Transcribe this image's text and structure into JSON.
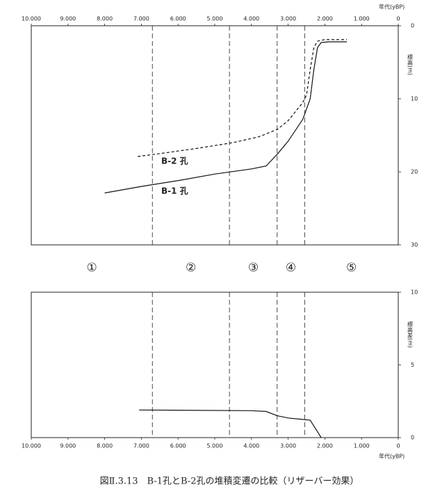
{
  "chart_data": [
    {
      "type": "line",
      "xlabel": "年代(yBP)",
      "ylabel": "標高(m)",
      "xlim": [
        10000,
        0
      ],
      "ylim": [
        30,
        0
      ],
      "yreversed": true,
      "xticks": [
        {
          "value": 10000,
          "label": "10.000"
        },
        {
          "value": 9000,
          "label": "9.000"
        },
        {
          "value": 8000,
          "label": "8.000"
        },
        {
          "value": 7000,
          "label": "7.000"
        },
        {
          "value": 6000,
          "label": "6.000"
        },
        {
          "value": 5000,
          "label": "5.000"
        },
        {
          "value": 4000,
          "label": "4.000"
        },
        {
          "value": 3000,
          "label": "3.000"
        },
        {
          "value": 2000,
          "label": "2.000"
        },
        {
          "value": 1000,
          "label": "1.000"
        },
        0
      ],
      "yticks": [
        0,
        10,
        20,
        30
      ],
      "vlines": [
        6700,
        4600,
        3300,
        2550
      ],
      "series": [
        {
          "name": "B-1 孔",
          "color": "#111",
          "dashed": false,
          "x": [
            8000,
            7000,
            6000,
            5000,
            4000,
            3600,
            3300,
            3000,
            2600,
            2400,
            2300,
            2200,
            2100,
            1900,
            1400
          ],
          "values": [
            22.9,
            22.0,
            21.2,
            20.3,
            19.6,
            19.2,
            17.6,
            15.8,
            12.8,
            10.0,
            6.0,
            3.0,
            2.3,
            2.2,
            2.2
          ]
        },
        {
          "name": "B-2 孔",
          "color": "#111",
          "dashed": true,
          "x": [
            7100,
            6500,
            5500,
            4500,
            3800,
            3300,
            3000,
            2600,
            2500,
            2400,
            2300,
            2200,
            2000,
            1400
          ],
          "values": [
            17.9,
            17.5,
            16.8,
            16.0,
            15.2,
            14.2,
            13.0,
            10.5,
            9.5,
            6.0,
            3.0,
            2.1,
            1.9,
            1.9
          ]
        }
      ],
      "zones": [
        "①",
        "②",
        "③",
        "④",
        "⑤"
      ]
    },
    {
      "type": "line",
      "xlabel": "年代(yBP)",
      "ylabel": "標高差(m)",
      "xlim": [
        10000,
        0
      ],
      "ylim": [
        0,
        10
      ],
      "xticks": [
        {
          "value": 10000,
          "label": "10.000"
        },
        {
          "value": 9000,
          "label": "9.000"
        },
        {
          "value": 8000,
          "label": "8.000"
        },
        {
          "value": 7000,
          "label": "7.000"
        },
        {
          "value": 6000,
          "label": "6.000"
        },
        {
          "value": 5000,
          "label": "5.000"
        },
        {
          "value": 4000,
          "label": "4.000"
        },
        {
          "value": 3000,
          "label": "3.000"
        },
        {
          "value": 2000,
          "label": "2.000"
        },
        {
          "value": 1000,
          "label": "1.000"
        },
        0
      ],
      "yticks": [
        0,
        5,
        10
      ],
      "vlines": [
        6700,
        4600,
        3300,
        2550
      ],
      "series": [
        {
          "color": "#111",
          "dashed": false,
          "x": [
            7060,
            4000,
            3600,
            3300,
            3000,
            2600,
            2400,
            2200,
            2100
          ],
          "values": [
            1.9,
            1.85,
            1.8,
            1.5,
            1.35,
            1.25,
            1.2,
            0.4,
            0
          ]
        }
      ]
    }
  ],
  "figure_caption": "図Ⅱ.3.13　B-1孔とB-2孔の堆積変遷の比較（リザーバー効果）"
}
